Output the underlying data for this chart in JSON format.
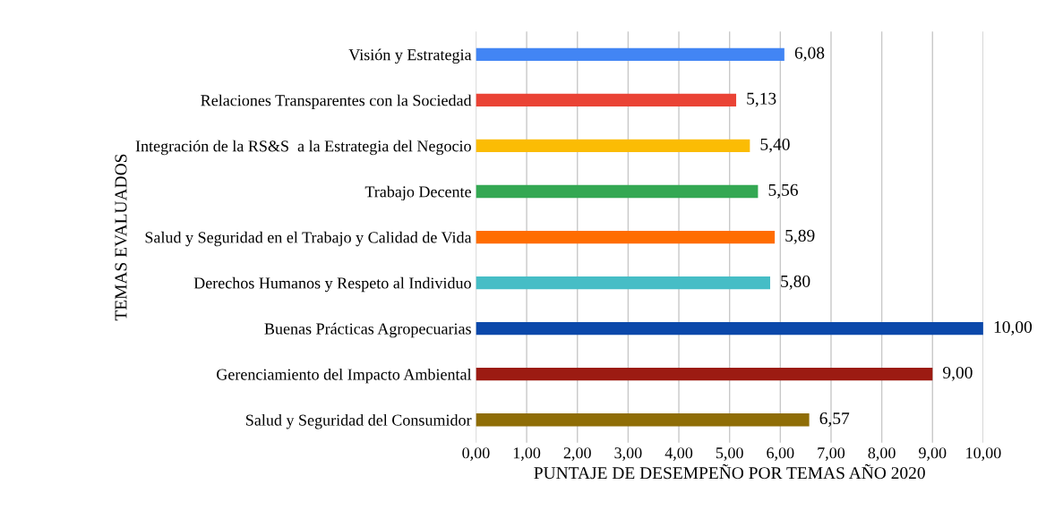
{
  "chart_data": {
    "type": "bar",
    "orientation": "horizontal",
    "xlabel": "PUNTAJE DE DESEMPEÑO POR TEMAS AÑO 2020",
    "ylabel": "TEMAS EVALUADOS",
    "categories": [
      "Visión y Estrategia",
      "Relaciones Transparentes con la Sociedad",
      "Integración de la RS&S  a la Estrategia del Negocio",
      "Trabajo Decente",
      "Salud y Seguridad en el Trabajo y Calidad de Vida",
      "Derechos Humanos y Respeto al Individuo",
      "Buenas Prácticas Agropecuarias",
      "Gerenciamiento del Impacto Ambiental",
      "Salud y Seguridad del Consumidor"
    ],
    "values": [
      6.08,
      5.13,
      5.4,
      5.56,
      5.89,
      5.8,
      10.0,
      9.0,
      6.57
    ],
    "value_labels": [
      "6,08",
      "5,13",
      "5,40",
      "5,56",
      "5,89",
      "5,80",
      "10,00",
      "9,00",
      "6,57"
    ],
    "colors": [
      "#4285f4",
      "#ea4335",
      "#fbbc04",
      "#34a853",
      "#ff6d01",
      "#46bdc6",
      "#0b48aa",
      "#9c1b12",
      "#8f6d06"
    ],
    "xlim": [
      0,
      10
    ],
    "xticks": [
      {
        "value": 0,
        "label": "0,00"
      },
      {
        "value": 1,
        "label": "1,00"
      },
      {
        "value": 2,
        "label": "2,00"
      },
      {
        "value": 3,
        "label": "3,00"
      },
      {
        "value": 4,
        "label": "4,00"
      },
      {
        "value": 5,
        "label": "5,00"
      },
      {
        "value": 6,
        "label": "6,00"
      },
      {
        "value": 7,
        "label": "7,00"
      },
      {
        "value": 8,
        "label": "8,00"
      },
      {
        "value": 9,
        "label": "9,00"
      },
      {
        "value": 10,
        "label": "10,00"
      }
    ],
    "grid": "x",
    "legend": false
  }
}
